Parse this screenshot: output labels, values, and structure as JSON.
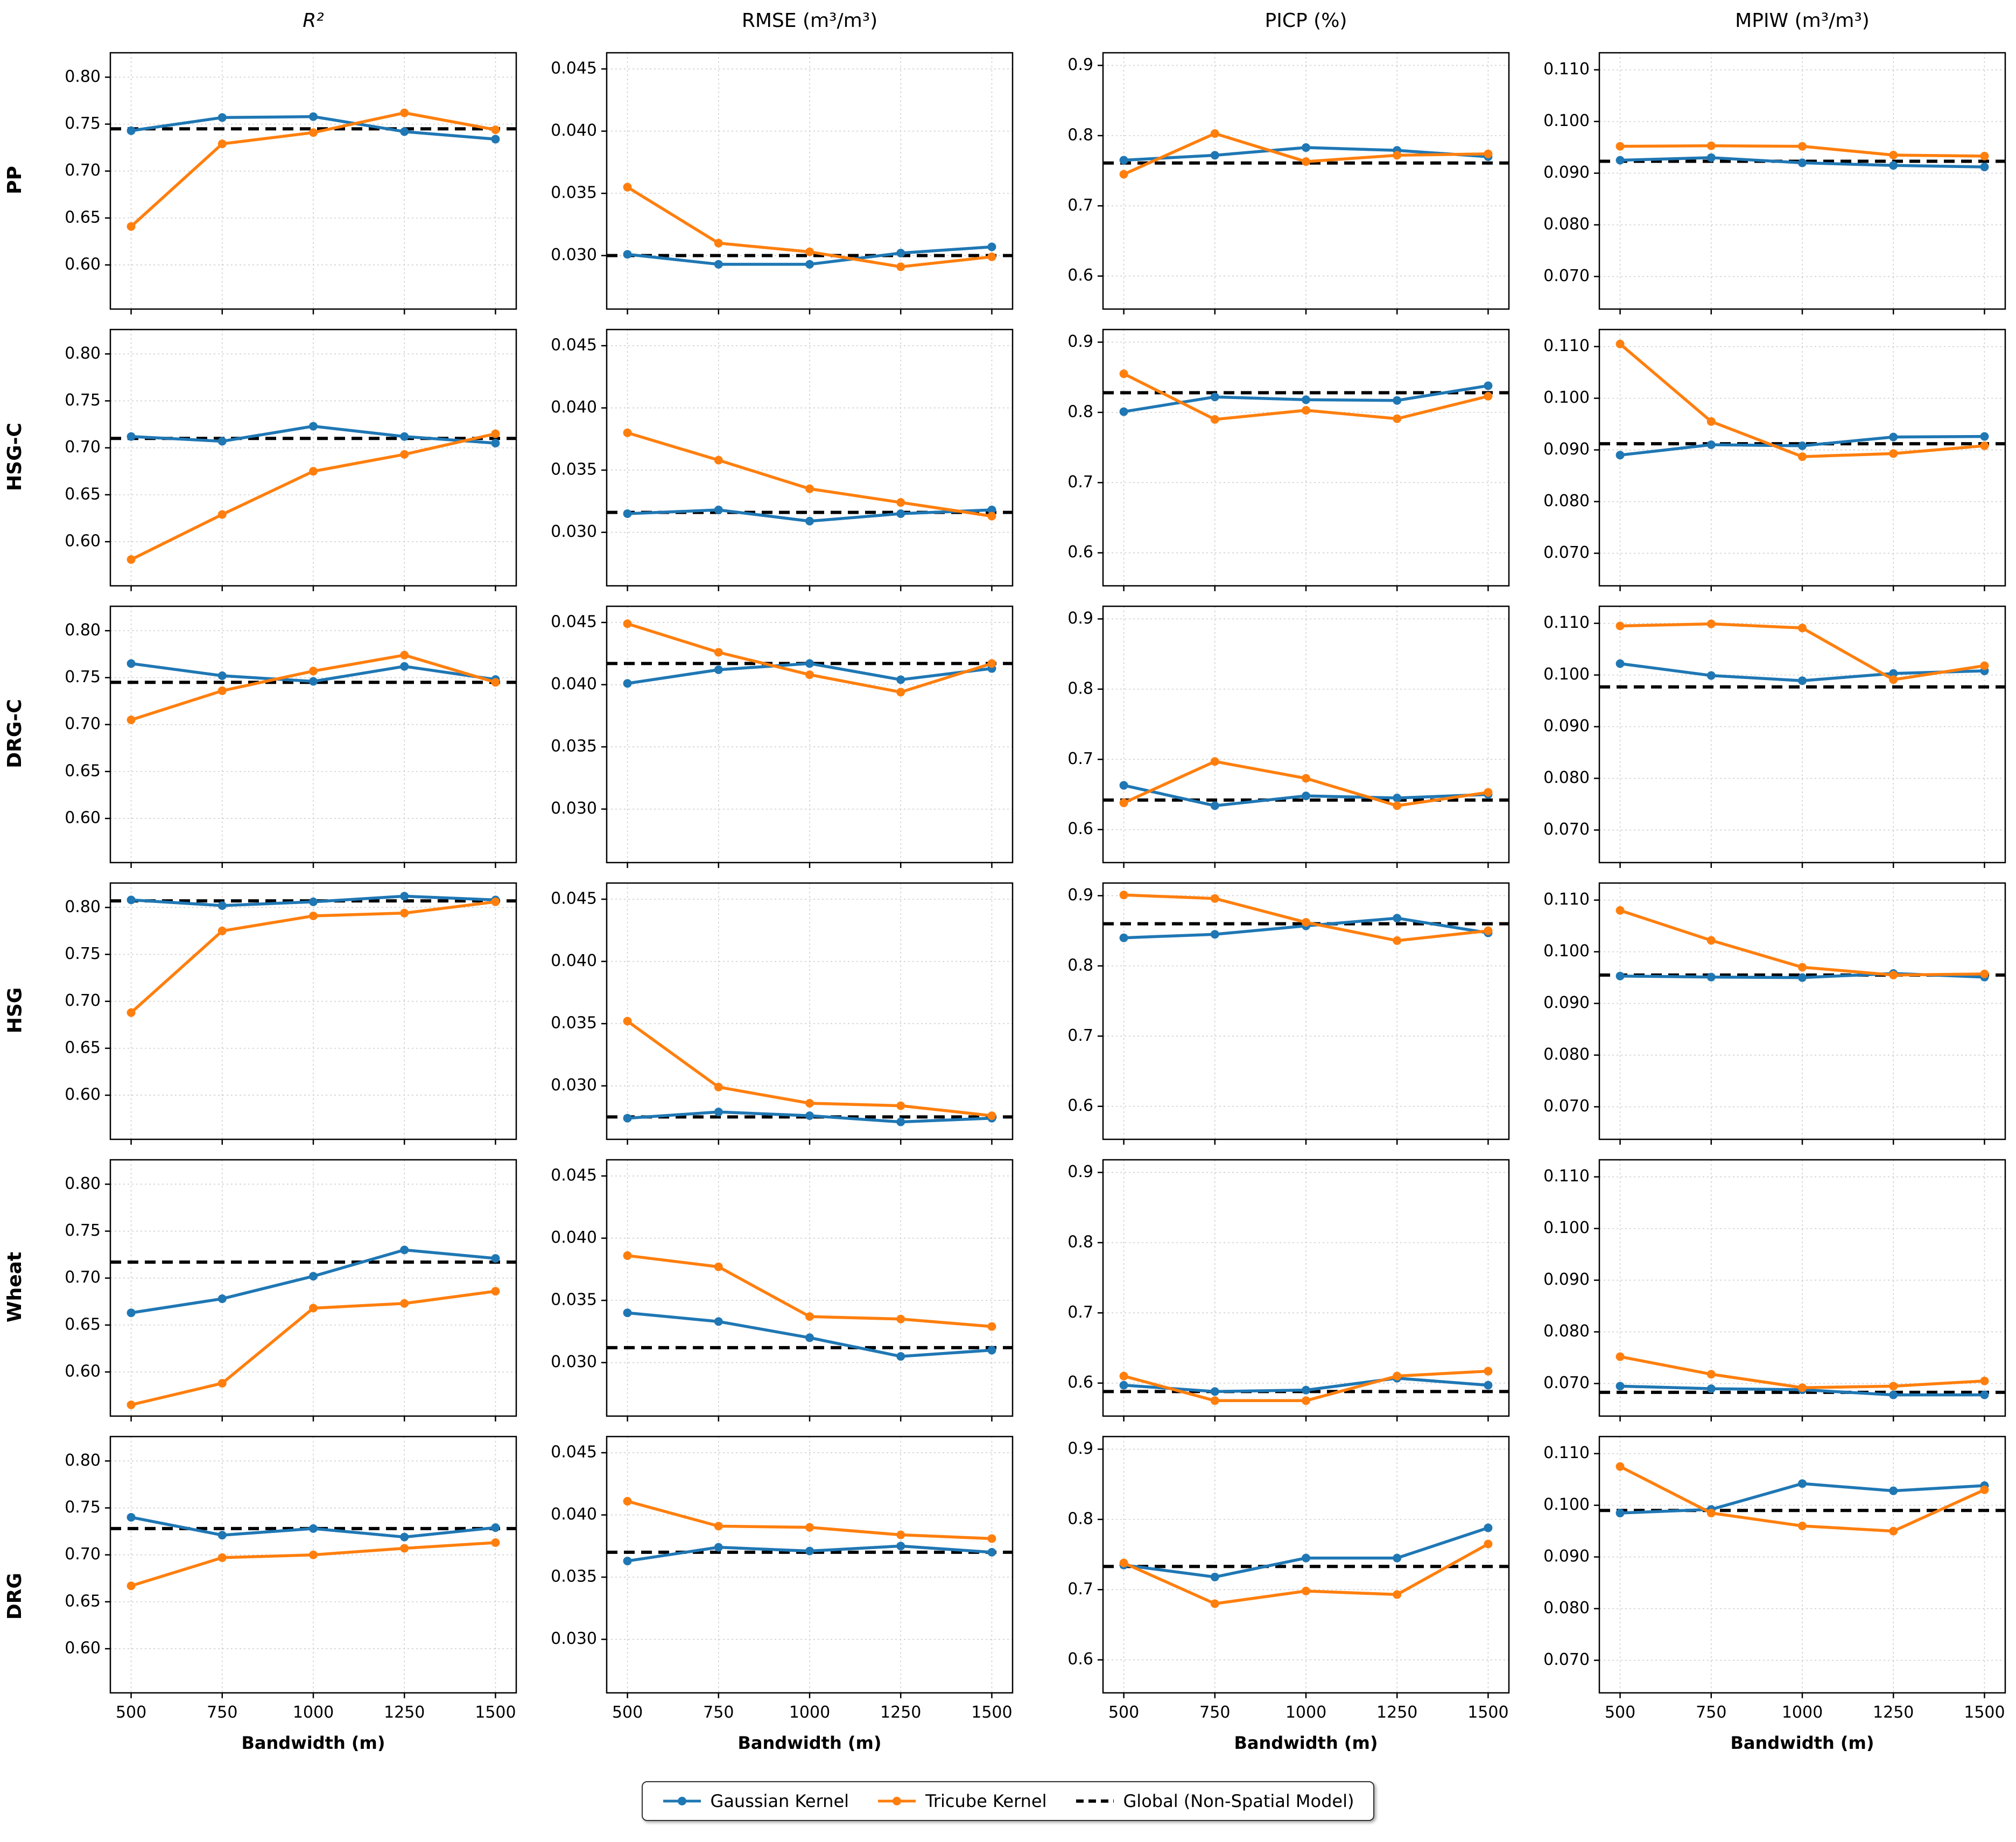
{
  "chart_data": {
    "type": "line",
    "x": [
      500,
      750,
      1000,
      1250,
      1500
    ],
    "xlabel": "Bandwidth (m)",
    "col_titles": [
      "R²",
      "RMSE (m³/m³)",
      "PICP (%)",
      "MPIW (m³/m³)"
    ],
    "row_labels": [
      "PP",
      "HSG-C",
      "DRG-C",
      "HSG",
      "Wheat",
      "DRG"
    ],
    "series_names": [
      "Gaussian Kernel",
      "Tricube Kernel",
      "Global (Non-Spatial Model)"
    ],
    "colors": {
      "gaussian": "#1f77b4",
      "tricube": "#ff7f0e",
      "global": "#000000"
    },
    "legend_position": "bottom-center",
    "grid_on": true,
    "axes": [
      {
        "metric": "R²",
        "ticks": [
          0.6,
          0.65,
          0.7,
          0.75,
          0.8
        ],
        "decimals": 2,
        "min": 0.553,
        "max": 0.826
      },
      {
        "metric": "RMSE",
        "ticks": [
          0.03,
          0.035,
          0.04,
          0.045
        ],
        "decimals": 3,
        "min": 0.0257,
        "max": 0.0463
      },
      {
        "metric": "PICP",
        "ticks": [
          0.6,
          0.7,
          0.8,
          0.9
        ],
        "decimals": 1,
        "min": 0.553,
        "max": 0.918
      },
      {
        "metric": "MPIW",
        "ticks": [
          0.07,
          0.08,
          0.09,
          0.1,
          0.11
        ],
        "decimals": 3,
        "min": 0.0637,
        "max": 0.1133
      }
    ],
    "subplots": [
      {
        "row": "PP",
        "metric": "R²",
        "gaussian": [
          0.743,
          0.757,
          0.758,
          0.742,
          0.734
        ],
        "tricube": [
          0.641,
          0.729,
          0.741,
          0.762,
          0.744
        ],
        "global": 0.745
      },
      {
        "row": "PP",
        "metric": "RMSE",
        "gaussian": [
          0.0301,
          0.0293,
          0.0293,
          0.0302,
          0.0307
        ],
        "tricube": [
          0.0355,
          0.031,
          0.0303,
          0.0291,
          0.0299
        ],
        "global": 0.03
      },
      {
        "row": "PP",
        "metric": "PICP",
        "gaussian": [
          0.765,
          0.772,
          0.783,
          0.779,
          0.77
        ],
        "tricube": [
          0.745,
          0.803,
          0.763,
          0.772,
          0.774
        ],
        "global": 0.761
      },
      {
        "row": "PP",
        "metric": "MPIW",
        "gaussian": [
          0.0925,
          0.093,
          0.092,
          0.0915,
          0.0912
        ],
        "tricube": [
          0.0952,
          0.0953,
          0.0952,
          0.0935,
          0.0933
        ],
        "global": 0.0923
      },
      {
        "row": "HSG-C",
        "metric": "R²",
        "gaussian": [
          0.712,
          0.707,
          0.723,
          0.712,
          0.705
        ],
        "tricube": [
          0.581,
          0.629,
          0.675,
          0.693,
          0.715
        ],
        "global": 0.71
      },
      {
        "row": "HSG-C",
        "metric": "RMSE",
        "gaussian": [
          0.0315,
          0.0318,
          0.0309,
          0.0315,
          0.0318
        ],
        "tricube": [
          0.038,
          0.0358,
          0.0335,
          0.0324,
          0.0313
        ],
        "global": 0.0316
      },
      {
        "row": "HSG-C",
        "metric": "PICP",
        "gaussian": [
          0.801,
          0.822,
          0.818,
          0.817,
          0.838
        ],
        "tricube": [
          0.855,
          0.79,
          0.803,
          0.791,
          0.823
        ],
        "global": 0.828
      },
      {
        "row": "HSG-C",
        "metric": "MPIW",
        "gaussian": [
          0.089,
          0.091,
          0.0908,
          0.0925,
          0.0926
        ],
        "tricube": [
          0.1105,
          0.0955,
          0.0887,
          0.0893,
          0.0908
        ],
        "global": 0.0912
      },
      {
        "row": "DRG-C",
        "metric": "R²",
        "gaussian": [
          0.765,
          0.752,
          0.746,
          0.762,
          0.748
        ],
        "tricube": [
          0.705,
          0.736,
          0.757,
          0.774,
          0.745
        ],
        "global": 0.745
      },
      {
        "row": "DRG-C",
        "metric": "RMSE",
        "gaussian": [
          0.0401,
          0.0412,
          0.0417,
          0.0404,
          0.0413
        ],
        "tricube": [
          0.0449,
          0.0426,
          0.0408,
          0.0394,
          0.0417
        ],
        "global": 0.0417
      },
      {
        "row": "DRG-C",
        "metric": "PICP",
        "gaussian": [
          0.663,
          0.634,
          0.648,
          0.645,
          0.65
        ],
        "tricube": [
          0.638,
          0.697,
          0.673,
          0.634,
          0.653
        ],
        "global": 0.642
      },
      {
        "row": "DRG-C",
        "metric": "MPIW",
        "gaussian": [
          0.1022,
          0.0999,
          0.0989,
          0.1003,
          0.1008
        ],
        "tricube": [
          0.1095,
          0.1099,
          0.1091,
          0.0991,
          0.1018
        ],
        "global": 0.0977
      },
      {
        "row": "HSG",
        "metric": "R²",
        "gaussian": [
          0.808,
          0.802,
          0.806,
          0.812,
          0.808
        ],
        "tricube": [
          0.688,
          0.775,
          0.791,
          0.794,
          0.806
        ],
        "global": 0.807
      },
      {
        "row": "HSG",
        "metric": "RMSE",
        "gaussian": [
          0.0274,
          0.0279,
          0.0276,
          0.0271,
          0.0274
        ],
        "tricube": [
          0.0352,
          0.0299,
          0.0286,
          0.0284,
          0.0276
        ],
        "global": 0.0275
      },
      {
        "row": "HSG",
        "metric": "PICP",
        "gaussian": [
          0.84,
          0.845,
          0.857,
          0.868,
          0.847
        ],
        "tricube": [
          0.901,
          0.896,
          0.862,
          0.836,
          0.85
        ],
        "global": 0.86
      },
      {
        "row": "HSG",
        "metric": "MPIW",
        "gaussian": [
          0.0953,
          0.0951,
          0.095,
          0.0958,
          0.0951
        ],
        "tricube": [
          0.108,
          0.1022,
          0.097,
          0.0955,
          0.0957
        ],
        "global": 0.0955
      },
      {
        "row": "Wheat",
        "metric": "R²",
        "gaussian": [
          0.663,
          0.678,
          0.702,
          0.73,
          0.721
        ],
        "tricube": [
          0.565,
          0.588,
          0.668,
          0.673,
          0.686
        ],
        "global": 0.717
      },
      {
        "row": "Wheat",
        "metric": "RMSE",
        "gaussian": [
          0.034,
          0.0333,
          0.032,
          0.0305,
          0.031
        ],
        "tricube": [
          0.0386,
          0.0377,
          0.0337,
          0.0335,
          0.0329
        ],
        "global": 0.0312
      },
      {
        "row": "Wheat",
        "metric": "PICP",
        "gaussian": [
          0.597,
          0.588,
          0.59,
          0.607,
          0.597
        ],
        "tricube": [
          0.61,
          0.575,
          0.575,
          0.61,
          0.617
        ],
        "global": 0.588
      },
      {
        "row": "Wheat",
        "metric": "MPIW",
        "gaussian": [
          0.0695,
          0.069,
          0.0688,
          0.0678,
          0.0678
        ],
        "tricube": [
          0.0752,
          0.0718,
          0.0692,
          0.0695,
          0.0705
        ],
        "global": 0.0683
      },
      {
        "row": "DRG",
        "metric": "R²",
        "gaussian": [
          0.74,
          0.721,
          0.728,
          0.719,
          0.729
        ],
        "tricube": [
          0.667,
          0.697,
          0.7,
          0.707,
          0.713
        ],
        "global": 0.728
      },
      {
        "row": "DRG",
        "metric": "RMSE",
        "gaussian": [
          0.0363,
          0.0374,
          0.0371,
          0.0375,
          0.037
        ],
        "tricube": [
          0.0411,
          0.0391,
          0.039,
          0.0384,
          0.0381
        ],
        "global": 0.037
      },
      {
        "row": "DRG",
        "metric": "PICP",
        "gaussian": [
          0.735,
          0.718,
          0.745,
          0.745,
          0.788
        ],
        "tricube": [
          0.738,
          0.68,
          0.698,
          0.693,
          0.765
        ],
        "global": 0.733
      },
      {
        "row": "DRG",
        "metric": "MPIW",
        "gaussian": [
          0.0985,
          0.0992,
          0.1042,
          0.1028,
          0.1038
        ],
        "tricube": [
          0.1075,
          0.0985,
          0.096,
          0.095,
          0.103
        ],
        "global": 0.099
      }
    ]
  }
}
